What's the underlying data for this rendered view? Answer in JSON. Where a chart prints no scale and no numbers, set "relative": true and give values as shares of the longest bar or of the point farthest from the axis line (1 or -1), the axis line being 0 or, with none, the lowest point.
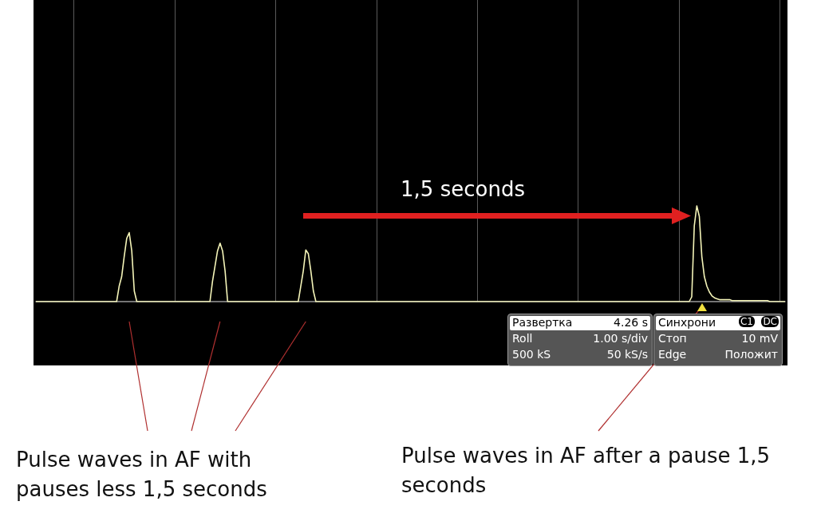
{
  "chart_data": {
    "type": "line",
    "relative": true,
    "annotations": [
      "Pulse waves in AF with pauses less 1,5 seconds",
      "Pulse waves in AF after a pause 1,5 seconds",
      "1,5 seconds",
      "Развертка",
      "4.26 s",
      "Roll",
      "1.00 s/div",
      "500 kS",
      "50 kS/s",
      "Синхрони",
      "C1",
      "DC",
      "Стоп",
      "10 mV",
      "Edge",
      "Положит"
    ],
    "categories": [
      null,
      null,
      null,
      null,
      null,
      null,
      null,
      null,
      null,
      null,
      null,
      null,
      null,
      null,
      null,
      null,
      null,
      null,
      null,
      null,
      null,
      null,
      null,
      null,
      null,
      null,
      null,
      null,
      null,
      null,
      null,
      null,
      null,
      null,
      null,
      null,
      null,
      null,
      null,
      null,
      null,
      null,
      null,
      null,
      null,
      null,
      null,
      null,
      null,
      null,
      null,
      null,
      null,
      null,
      null,
      null,
      null,
      null,
      null,
      null,
      null,
      null,
      null,
      null,
      null,
      null,
      null,
      null,
      null,
      null,
      null,
      null,
      null,
      null,
      null,
      null,
      null,
      null,
      null,
      null,
      null,
      null,
      null,
      null,
      null,
      null,
      null,
      null,
      null,
      null,
      null,
      null,
      null,
      null,
      null,
      null,
      null,
      null,
      null,
      null,
      null,
      null,
      null,
      null,
      null,
      null,
      null,
      null,
      null,
      null,
      null,
      null,
      null,
      null,
      null,
      null,
      null,
      null,
      null,
      null,
      null,
      null,
      null,
      null,
      null,
      null,
      null,
      null,
      null,
      null,
      null,
      null,
      null,
      null,
      null,
      null,
      null,
      null,
      null,
      null,
      null,
      null,
      null,
      null,
      null,
      null,
      null,
      null,
      null,
      null,
      null,
      null,
      null,
      null,
      null,
      null,
      null,
      null,
      null,
      null,
      null,
      null,
      null,
      null,
      null,
      null,
      null,
      null,
      null,
      null,
      null,
      null,
      null,
      null,
      null,
      null,
      null,
      null,
      null,
      null,
      null,
      null,
      null,
      null,
      null,
      null,
      null,
      null,
      null,
      null,
      null,
      null,
      null,
      null,
      null,
      null,
      null,
      null,
      null,
      null,
      null,
      null,
      null,
      null,
      null,
      null,
      null,
      null,
      null,
      null,
      null,
      null,
      null,
      null,
      null,
      null,
      null,
      null,
      null,
      null,
      null,
      null,
      null,
      null,
      null,
      null,
      null,
      null,
      null,
      null,
      null,
      null,
      null,
      null,
      null,
      null,
      null,
      null,
      null,
      null,
      null,
      null,
      null,
      null,
      null,
      null,
      null,
      null,
      null,
      null,
      null,
      null,
      null,
      null,
      null,
      null,
      null,
      null,
      null,
      null,
      null,
      null,
      null,
      null,
      null,
      null,
      null,
      null,
      null,
      null,
      null,
      null,
      null,
      null,
      null,
      null,
      null,
      null,
      null,
      null,
      null,
      null,
      null,
      null,
      null,
      null,
      null,
      null,
      null,
      null,
      null,
      null,
      null,
      null,
      null,
      null,
      null,
      null
    ],
    "series": [
      {
        "color": "#f4f4b8",
        "values": [
          0,
          0,
          0,
          0,
          0,
          0,
          0,
          0,
          0,
          0,
          0,
          0,
          0,
          0,
          0,
          0,
          0,
          0,
          0,
          0,
          0,
          0,
          0,
          0,
          0,
          0,
          0,
          0,
          0,
          0,
          0,
          0,
          0,
          0.16,
          0.26,
          0.47,
          0.66,
          0.72,
          0.53,
          0.11,
          0,
          0,
          0,
          0,
          0,
          0,
          0,
          0,
          0,
          0,
          0,
          0,
          0,
          0,
          0,
          0,
          0,
          0,
          0,
          0,
          0,
          0,
          0,
          0,
          0,
          0,
          0,
          0,
          0,
          0,
          0.21,
          0.37,
          0.53,
          0.61,
          0.53,
          0.32,
          0,
          0,
          0,
          0,
          0,
          0,
          0,
          0,
          0,
          0,
          0,
          0,
          0,
          0,
          0,
          0,
          0,
          0,
          0,
          0,
          0,
          0,
          0,
          0,
          0,
          0,
          0,
          0,
          0,
          0.16,
          0.32,
          0.54,
          0.5,
          0.32,
          0.11,
          0,
          0,
          0,
          0,
          0,
          0,
          0,
          0,
          0,
          0,
          0,
          0,
          0,
          0,
          0,
          0,
          0,
          0,
          0,
          0,
          0,
          0,
          0,
          0,
          0,
          0,
          0,
          0,
          0,
          0,
          0,
          0,
          0,
          0,
          0,
          0,
          0,
          0,
          0,
          0,
          0,
          0,
          0,
          0,
          0,
          0,
          0,
          0,
          0,
          0,
          0,
          0,
          0,
          0,
          0,
          0,
          0,
          0,
          0,
          0,
          0,
          0,
          0,
          0,
          0,
          0,
          0,
          0,
          0,
          0,
          0,
          0,
          0,
          0,
          0,
          0,
          0,
          0,
          0,
          0,
          0,
          0,
          0,
          0,
          0,
          0,
          0,
          0,
          0,
          0,
          0,
          0,
          0,
          0,
          0,
          0,
          0,
          0,
          0,
          0,
          0,
          0,
          0,
          0,
          0,
          0,
          0,
          0,
          0,
          0,
          0,
          0,
          0,
          0,
          0,
          0,
          0,
          0,
          0,
          0,
          0,
          0,
          0,
          0,
          0,
          0,
          0,
          0,
          0,
          0,
          0,
          0,
          0,
          0,
          0,
          0,
          0,
          0,
          0,
          0,
          0,
          0,
          0,
          0,
          0,
          0,
          0,
          0,
          0,
          0.05,
          0.79,
          1,
          0.89,
          0.47,
          0.26,
          0.16,
          0.1,
          0.06,
          0.04,
          0.03,
          0.02,
          0.02,
          0.02,
          0.02,
          0.02,
          0.01,
          0.01,
          0.01,
          0.01,
          0.01,
          0.01,
          0.01,
          0.01,
          0.01,
          0.01,
          0.01,
          0.01,
          0.01,
          0.01,
          0.01,
          0,
          0,
          0,
          0,
          0,
          0,
          0
        ]
      }
    ],
    "grid": "x",
    "marker": "none",
    "line_style": "solid"
  }
}
